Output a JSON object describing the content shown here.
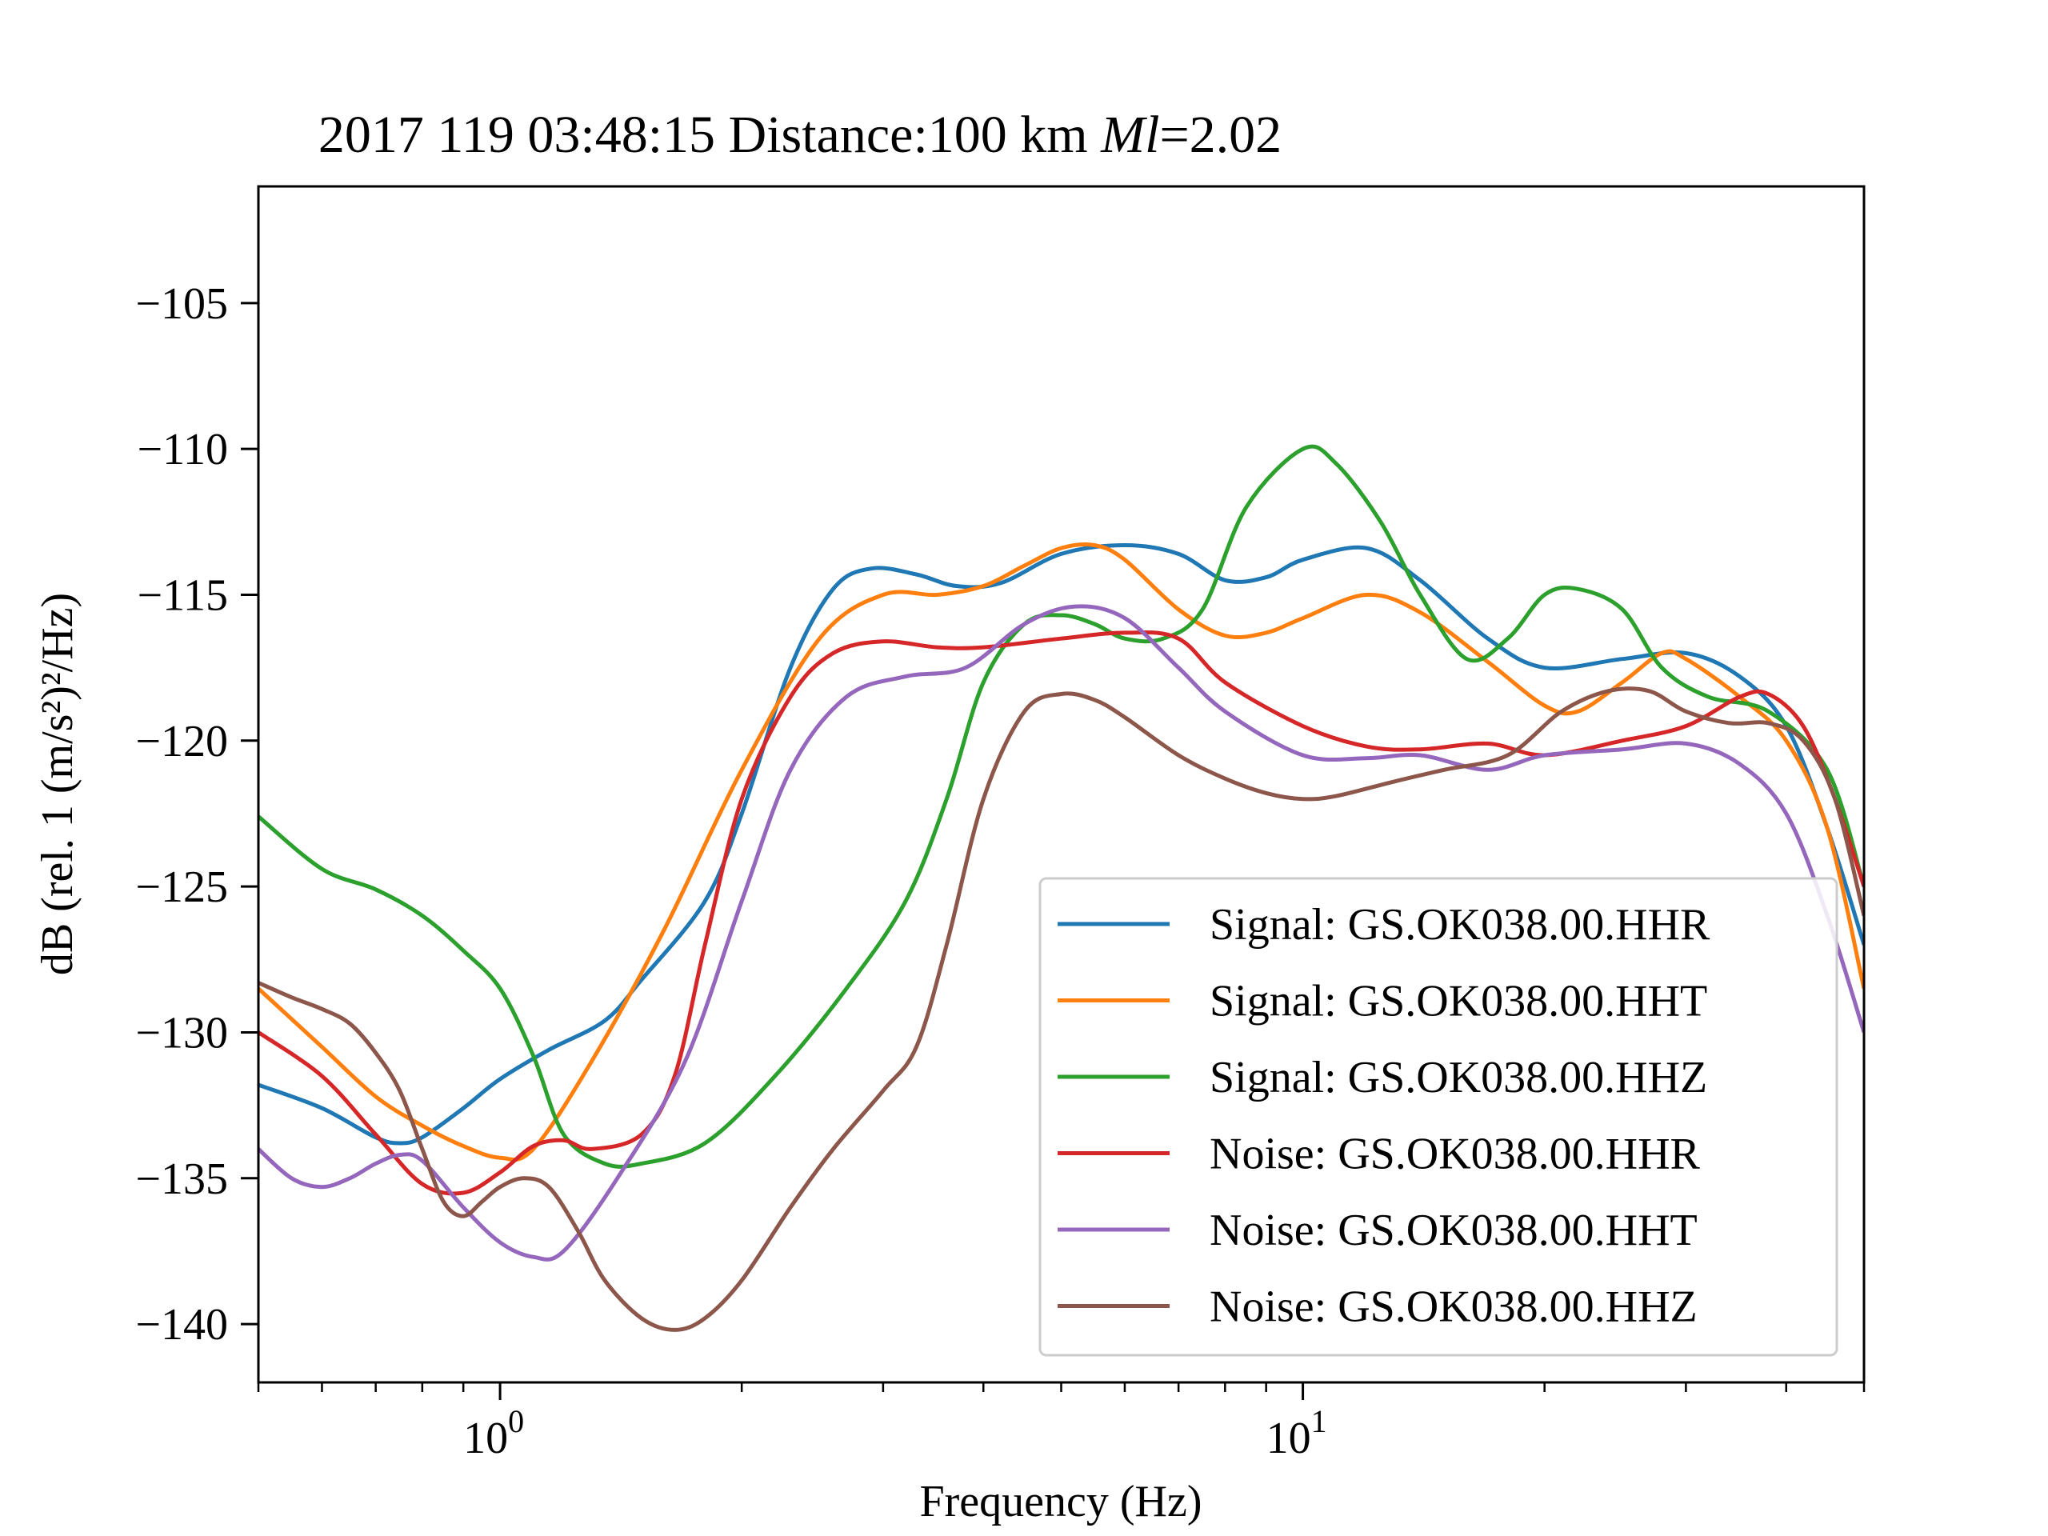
{
  "chart_data": {
    "type": "line",
    "title_prefix": "2017 119 03:48:15 Distance:100 km ",
    "title_italic": "Ml",
    "title_suffix": "=2.02",
    "xlabel": "Frequency (Hz)",
    "ylabel": "dB (rel. 1 (m/s²)²/Hz)",
    "xscale": "log",
    "xlim": [
      0.5,
      50
    ],
    "ylim": [
      -142,
      -101
    ],
    "x_major_ticks": [
      {
        "value": 1,
        "base": "10",
        "exp": "0"
      },
      {
        "value": 10,
        "base": "10",
        "exp": "1"
      }
    ],
    "x_minor_ticks": [
      0.5,
      0.6,
      0.7,
      0.8,
      0.9,
      2,
      3,
      4,
      5,
      6,
      7,
      8,
      9,
      20,
      30,
      40,
      50
    ],
    "y_ticks": [
      -105,
      -110,
      -115,
      -120,
      -125,
      -130,
      -135,
      -140
    ],
    "y_tick_labels": [
      "−105",
      "−110",
      "−115",
      "−120",
      "−125",
      "−130",
      "−135",
      "−140"
    ],
    "grid": false,
    "legend_position": "lower-right",
    "series": [
      {
        "name": "Signal: GS.OK038.00.HHR",
        "color": "#1f77b4",
        "points": [
          [
            0.5,
            -131.8
          ],
          [
            0.6,
            -132.6
          ],
          [
            0.7,
            -133.6
          ],
          [
            0.75,
            -133.8
          ],
          [
            0.8,
            -133.6
          ],
          [
            0.9,
            -132.6
          ],
          [
            1.0,
            -131.6
          ],
          [
            1.15,
            -130.6
          ],
          [
            1.35,
            -129.6
          ],
          [
            1.5,
            -128.2
          ],
          [
            1.8,
            -125.5
          ],
          [
            2.0,
            -122.5
          ],
          [
            2.3,
            -117.5
          ],
          [
            2.6,
            -114.8
          ],
          [
            2.9,
            -114.1
          ],
          [
            3.3,
            -114.3
          ],
          [
            3.7,
            -114.7
          ],
          [
            4.2,
            -114.6
          ],
          [
            5.0,
            -113.6
          ],
          [
            6.0,
            -113.3
          ],
          [
            7.0,
            -113.6
          ],
          [
            8.0,
            -114.5
          ],
          [
            9.0,
            -114.4
          ],
          [
            10.0,
            -113.8
          ],
          [
            12.0,
            -113.4
          ],
          [
            14.0,
            -114.5
          ],
          [
            17.0,
            -116.5
          ],
          [
            20.0,
            -117.5
          ],
          [
            25.0,
            -117.2
          ],
          [
            30.0,
            -117.0
          ],
          [
            35.0,
            -117.8
          ],
          [
            40.0,
            -119.5
          ],
          [
            45.0,
            -123.0
          ],
          [
            50.0,
            -127.0
          ]
        ]
      },
      {
        "name": "Signal: GS.OK038.00.HHT",
        "color": "#ff7f0e",
        "points": [
          [
            0.5,
            -128.5
          ],
          [
            0.6,
            -130.5
          ],
          [
            0.7,
            -132.2
          ],
          [
            0.8,
            -133.2
          ],
          [
            0.9,
            -133.9
          ],
          [
            1.0,
            -134.3
          ],
          [
            1.1,
            -134.0
          ],
          [
            1.3,
            -131.0
          ],
          [
            1.6,
            -126.5
          ],
          [
            2.0,
            -121.0
          ],
          [
            2.5,
            -116.5
          ],
          [
            3.0,
            -115.0
          ],
          [
            3.5,
            -115.0
          ],
          [
            4.0,
            -114.7
          ],
          [
            4.5,
            -114.0
          ],
          [
            5.0,
            -113.4
          ],
          [
            5.5,
            -113.3
          ],
          [
            6.0,
            -113.8
          ],
          [
            7.0,
            -115.5
          ],
          [
            8.0,
            -116.4
          ],
          [
            9.0,
            -116.3
          ],
          [
            10.0,
            -115.8
          ],
          [
            12.0,
            -115.0
          ],
          [
            14.0,
            -115.6
          ],
          [
            17.0,
            -117.3
          ],
          [
            20.0,
            -118.8
          ],
          [
            22.0,
            -119.0
          ],
          [
            25.0,
            -118.0
          ],
          [
            28.0,
            -117.0
          ],
          [
            30.0,
            -117.2
          ],
          [
            35.0,
            -118.5
          ],
          [
            40.0,
            -120.0
          ],
          [
            45.0,
            -123.0
          ],
          [
            50.0,
            -128.5
          ]
        ]
      },
      {
        "name": "Signal: GS.OK038.00.HHZ",
        "color": "#2ca02c",
        "points": [
          [
            0.5,
            -122.6
          ],
          [
            0.6,
            -124.4
          ],
          [
            0.7,
            -125.1
          ],
          [
            0.8,
            -126.0
          ],
          [
            0.9,
            -127.2
          ],
          [
            1.0,
            -128.5
          ],
          [
            1.1,
            -130.8
          ],
          [
            1.2,
            -133.5
          ],
          [
            1.35,
            -134.5
          ],
          [
            1.5,
            -134.5
          ],
          [
            1.8,
            -133.8
          ],
          [
            2.2,
            -131.5
          ],
          [
            2.7,
            -128.5
          ],
          [
            3.2,
            -125.5
          ],
          [
            3.6,
            -122.0
          ],
          [
            4.0,
            -118.0
          ],
          [
            4.5,
            -116.0
          ],
          [
            5.0,
            -115.7
          ],
          [
            5.5,
            -116.0
          ],
          [
            6.0,
            -116.5
          ],
          [
            6.7,
            -116.5
          ],
          [
            7.5,
            -115.5
          ],
          [
            8.5,
            -112.0
          ],
          [
            10.0,
            -110.0
          ],
          [
            11.0,
            -110.5
          ],
          [
            12.5,
            -112.5
          ],
          [
            14.0,
            -115.0
          ],
          [
            16.0,
            -117.2
          ],
          [
            18.0,
            -116.5
          ],
          [
            20.0,
            -115.0
          ],
          [
            22.0,
            -114.8
          ],
          [
            25.0,
            -115.5
          ],
          [
            28.0,
            -117.5
          ],
          [
            32.0,
            -118.5
          ],
          [
            38.0,
            -119.0
          ],
          [
            45.0,
            -121.0
          ],
          [
            50.0,
            -125.0
          ]
        ]
      },
      {
        "name": "Noise: GS.OK038.00.HHR",
        "color": "#d62728",
        "points": [
          [
            0.5,
            -130.0
          ],
          [
            0.6,
            -131.5
          ],
          [
            0.7,
            -133.5
          ],
          [
            0.8,
            -135.2
          ],
          [
            0.9,
            -135.5
          ],
          [
            1.0,
            -134.8
          ],
          [
            1.1,
            -133.9
          ],
          [
            1.2,
            -133.7
          ],
          [
            1.3,
            -134.0
          ],
          [
            1.5,
            -133.5
          ],
          [
            1.65,
            -131.5
          ],
          [
            1.8,
            -127.0
          ],
          [
            2.0,
            -122.0
          ],
          [
            2.3,
            -118.5
          ],
          [
            2.6,
            -117.0
          ],
          [
            3.0,
            -116.6
          ],
          [
            3.5,
            -116.8
          ],
          [
            4.0,
            -116.8
          ],
          [
            5.0,
            -116.5
          ],
          [
            6.0,
            -116.3
          ],
          [
            7.0,
            -116.5
          ],
          [
            8.0,
            -118.0
          ],
          [
            10.0,
            -119.5
          ],
          [
            12.0,
            -120.2
          ],
          [
            14.0,
            -120.3
          ],
          [
            17.0,
            -120.1
          ],
          [
            20.0,
            -120.5
          ],
          [
            25.0,
            -120.0
          ],
          [
            30.0,
            -119.5
          ],
          [
            35.0,
            -118.5
          ],
          [
            38.0,
            -118.4
          ],
          [
            42.0,
            -119.5
          ],
          [
            46.0,
            -122.0
          ],
          [
            50.0,
            -125.0
          ]
        ]
      },
      {
        "name": "Noise: GS.OK038.00.HHT",
        "color": "#9467bd",
        "points": [
          [
            0.5,
            -134.0
          ],
          [
            0.55,
            -135.0
          ],
          [
            0.6,
            -135.3
          ],
          [
            0.65,
            -135.0
          ],
          [
            0.7,
            -134.5
          ],
          [
            0.75,
            -134.2
          ],
          [
            0.8,
            -134.4
          ],
          [
            0.9,
            -136.0
          ],
          [
            1.0,
            -137.2
          ],
          [
            1.1,
            -137.7
          ],
          [
            1.2,
            -137.5
          ],
          [
            1.4,
            -135.0
          ],
          [
            1.7,
            -131.0
          ],
          [
            2.0,
            -125.5
          ],
          [
            2.3,
            -121.0
          ],
          [
            2.7,
            -118.5
          ],
          [
            3.2,
            -117.8
          ],
          [
            3.8,
            -117.5
          ],
          [
            4.5,
            -116.0
          ],
          [
            5.2,
            -115.4
          ],
          [
            6.0,
            -115.8
          ],
          [
            7.0,
            -117.5
          ],
          [
            8.0,
            -119.0
          ],
          [
            10.0,
            -120.5
          ],
          [
            12.0,
            -120.6
          ],
          [
            14.0,
            -120.5
          ],
          [
            17.0,
            -121.0
          ],
          [
            20.0,
            -120.5
          ],
          [
            25.0,
            -120.3
          ],
          [
            30.0,
            -120.1
          ],
          [
            35.0,
            -120.8
          ],
          [
            40.0,
            -122.5
          ],
          [
            45.0,
            -126.0
          ],
          [
            50.0,
            -130.0
          ]
        ]
      },
      {
        "name": "Noise: GS.OK038.00.HHZ",
        "color": "#8c564b",
        "points": [
          [
            0.5,
            -128.3
          ],
          [
            0.55,
            -128.8
          ],
          [
            0.6,
            -129.2
          ],
          [
            0.65,
            -129.7
          ],
          [
            0.7,
            -130.7
          ],
          [
            0.75,
            -132.0
          ],
          [
            0.8,
            -134.0
          ],
          [
            0.85,
            -135.8
          ],
          [
            0.9,
            -136.3
          ],
          [
            0.95,
            -135.8
          ],
          [
            1.0,
            -135.3
          ],
          [
            1.07,
            -135.0
          ],
          [
            1.15,
            -135.3
          ],
          [
            1.25,
            -136.8
          ],
          [
            1.35,
            -138.5
          ],
          [
            1.5,
            -139.8
          ],
          [
            1.65,
            -140.2
          ],
          [
            1.8,
            -139.8
          ],
          [
            2.0,
            -138.5
          ],
          [
            2.3,
            -136.0
          ],
          [
            2.6,
            -134.0
          ],
          [
            3.0,
            -132.0
          ],
          [
            3.3,
            -130.5
          ],
          [
            3.6,
            -127.0
          ],
          [
            4.0,
            -122.0
          ],
          [
            4.5,
            -119.0
          ],
          [
            5.0,
            -118.4
          ],
          [
            5.5,
            -118.6
          ],
          [
            6.0,
            -119.2
          ],
          [
            7.0,
            -120.5
          ],
          [
            8.0,
            -121.3
          ],
          [
            9.0,
            -121.8
          ],
          [
            10.0,
            -122.0
          ],
          [
            11.0,
            -121.9
          ],
          [
            13.0,
            -121.4
          ],
          [
            15.0,
            -121.0
          ],
          [
            18.0,
            -120.5
          ],
          [
            21.0,
            -119.0
          ],
          [
            24.0,
            -118.3
          ],
          [
            27.0,
            -118.3
          ],
          [
            30.0,
            -119.0
          ],
          [
            34.0,
            -119.4
          ],
          [
            38.0,
            -119.4
          ],
          [
            42.0,
            -120.0
          ],
          [
            46.0,
            -122.0
          ],
          [
            50.0,
            -126.0
          ]
        ]
      }
    ]
  }
}
